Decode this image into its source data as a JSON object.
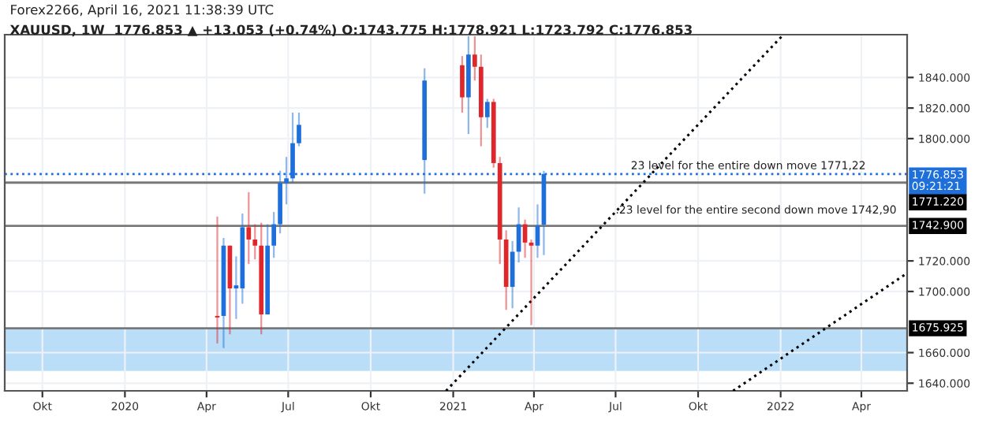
{
  "chart_data": {
    "type": "candlestick",
    "title": "Forex2266, April 16, 2021 11:38:39 UTC",
    "subtitle": "XAUUSD, 1W  1776.853 ▲ +13.053 (+0.74%) O:1743.775 H:1778.921 L:1723.792 C:1776.853",
    "x": [
      "2020-04-13",
      "2020-04-20",
      "2020-04-27",
      "2020-05-04",
      "2020-05-11",
      "2020-05-18",
      "2020-05-25",
      "2020-06-01",
      "2020-06-08",
      "2020-06-15",
      "2020-06-22",
      "2020-06-29",
      "2020-07-06",
      "2020-07-13",
      "2020-11-30",
      "2021-01-11",
      "2021-01-18",
      "2021-01-25",
      "2021-02-01",
      "2021-02-08",
      "2021-02-15",
      "2021-02-22",
      "2021-03-01",
      "2021-03-08",
      "2021-03-15",
      "2021-03-22",
      "2021-03-29",
      "2021-04-05",
      "2021-04-12"
    ],
    "ohlc": [
      [
        1684,
        1749,
        1666,
        1683
      ],
      [
        1684,
        1735,
        1663,
        1730
      ],
      [
        1730,
        1730,
        1672,
        1702
      ],
      [
        1702,
        1723,
        1682,
        1704
      ],
      [
        1702,
        1751,
        1692,
        1742
      ],
      [
        1742,
        1765,
        1718,
        1734
      ],
      [
        1734,
        1744,
        1721,
        1730
      ],
      [
        1730,
        1745,
        1672,
        1685
      ],
      [
        1685,
        1744,
        1685,
        1730
      ],
      [
        1730,
        1752,
        1722,
        1744
      ],
      [
        1744,
        1779,
        1738,
        1771
      ],
      [
        1771,
        1788,
        1757,
        1774
      ],
      [
        1774,
        1817,
        1771,
        1797
      ],
      [
        1797,
        1817,
        1795,
        1809
      ],
      [
        1786,
        1846,
        1764,
        1838
      ],
      [
        1848,
        1854,
        1817,
        1827
      ],
      [
        1827,
        1867,
        1803,
        1855
      ],
      [
        1855,
        1867,
        1838,
        1847
      ],
      [
        1847,
        1855,
        1795,
        1814
      ],
      [
        1814,
        1826,
        1807,
        1824
      ],
      [
        1824,
        1826,
        1781,
        1784
      ],
      [
        1784,
        1788,
        1718,
        1734
      ],
      [
        1734,
        1740,
        1688,
        1703
      ],
      [
        1703,
        1733,
        1689,
        1726
      ],
      [
        1726,
        1755,
        1719,
        1744
      ],
      [
        1744,
        1747,
        1722,
        1732
      ],
      [
        1732,
        1734,
        1678,
        1730
      ],
      [
        1730,
        1757,
        1722,
        1743
      ],
      [
        1743.775,
        1778.921,
        1723.792,
        1776.853
      ]
    ],
    "colors": [
      "#e0262b",
      "#1e6fd9",
      "#e0262b",
      "#1e6fd9",
      "#1e6fd9",
      "#e0262b",
      "#e0262b",
      "#e0262b",
      "#1e6fd9",
      "#1e6fd9",
      "#1e6fd9",
      "#1e6fd9",
      "#1e6fd9",
      "#1e6fd9",
      "#1e6fd9",
      "#e0262b",
      "#1e6fd9",
      "#e0262b",
      "#e0262b",
      "#1e6fd9",
      "#e0262b",
      "#e0262b",
      "#e0262b",
      "#1e6fd9",
      "#1e6fd9",
      "#e0262b",
      "#e0262b",
      "#1e6fd9",
      "#1e6fd9"
    ],
    "series": [
      {
        "type": "line",
        "color": "#000000",
        "line_style": "dotted",
        "x": [
          "2020-12-24",
          "2022-01-04"
        ],
        "values": [
          1635,
          1868
        ]
      },
      {
        "type": "line",
        "color": "#000000",
        "line_style": "dotted",
        "x": [
          "2021-11-09",
          "2022-05-22"
        ],
        "values": [
          1635,
          1712
        ]
      }
    ],
    "xlim": [
      "2019-08-20",
      "2022-05-22"
    ],
    "xticks": [
      {
        "value": "2019-10-01",
        "label": "Okt"
      },
      {
        "value": "2020-01-01",
        "label": "2020"
      },
      {
        "value": "2020-04-01",
        "label": "Apr"
      },
      {
        "value": "2020-07-01",
        "label": "Jul"
      },
      {
        "value": "2020-10-01",
        "label": "Okt"
      },
      {
        "value": "2021-01-01",
        "label": "2021"
      },
      {
        "value": "2021-04-01",
        "label": "Apr"
      },
      {
        "value": "2021-07-01",
        "label": "Jul"
      },
      {
        "value": "2021-10-01",
        "label": "Okt"
      },
      {
        "value": "2022-01-01",
        "label": "2022"
      },
      {
        "value": "2022-04-01",
        "label": "Apr"
      }
    ],
    "ylim": [
      1635,
      1868
    ],
    "yticks": [
      {
        "value": 1640,
        "label": "1640.000"
      },
      {
        "value": 1660,
        "label": "1660.000"
      },
      {
        "value": 1700,
        "label": "1700.000"
      },
      {
        "value": 1720,
        "label": "1720.000"
      },
      {
        "value": 1800,
        "label": "1800.000"
      },
      {
        "value": 1820,
        "label": "1820.000"
      },
      {
        "value": 1840,
        "label": "1840.000"
      }
    ],
    "ref_lines": [
      {
        "axis": "y",
        "value": 1771.22,
        "label": "1771.220",
        "color": "#787878"
      },
      {
        "axis": "y",
        "value": 1742.9,
        "label": "1742.900",
        "color": "#787878"
      },
      {
        "axis": "y",
        "value": 1675.925,
        "label": "1675.925",
        "color": "#787878"
      },
      {
        "axis": "y",
        "value": 1776.853,
        "label": "1776.853\n09:21:21",
        "color": "#1e6fd9",
        "line_style": "dotted"
      }
    ],
    "bands": [
      {
        "axis": "y",
        "from": 1648,
        "to": 1675.925,
        "color": "#b3d9f7"
      }
    ],
    "annotations": [
      {
        "text": "23 level for the entire down move 1771,22",
        "x": "2021-07-18",
        "y": 1782
      },
      {
        "text": ".23 level for the entire second down move 1742,90",
        "x": "2021-07-01",
        "y": 1753
      }
    ],
    "grid": true
  }
}
